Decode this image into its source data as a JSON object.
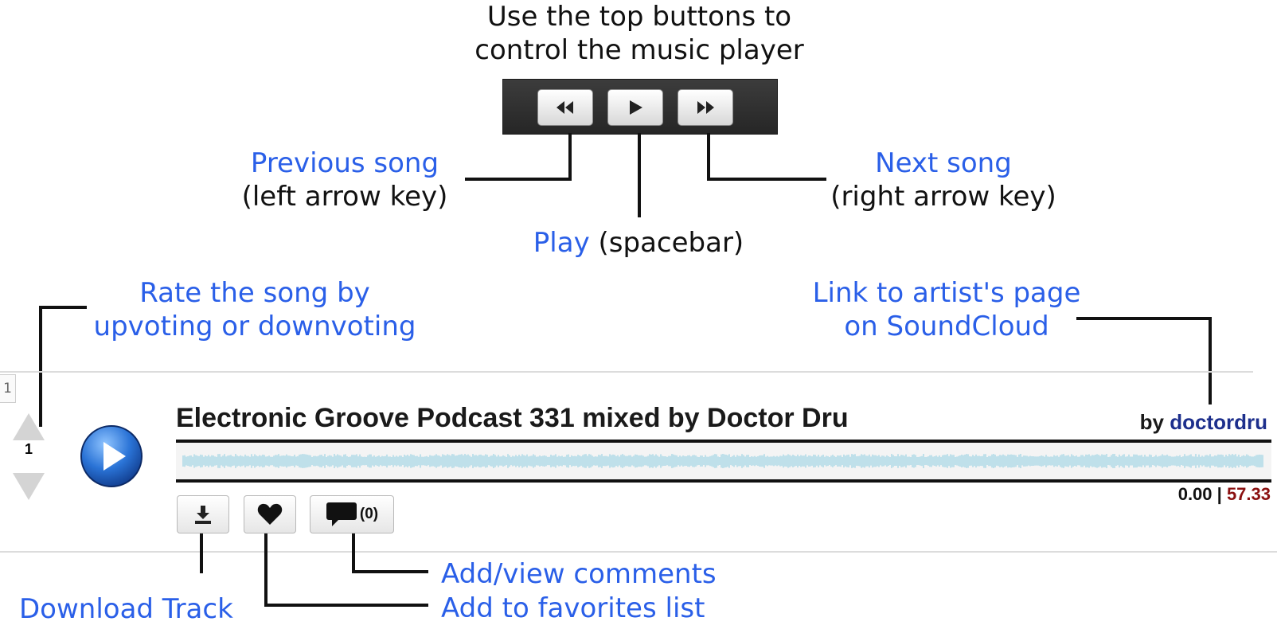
{
  "header": {
    "line1": "Use the top buttons to",
    "line2": "control the music player"
  },
  "player": {
    "buttons": [
      {
        "icon": "rewind-icon"
      },
      {
        "icon": "play-icon"
      },
      {
        "icon": "fast-forward-icon"
      }
    ]
  },
  "annotations": {
    "previous": {
      "title": "Previous song",
      "hint": "(left arrow key)"
    },
    "play": {
      "title": "Play",
      "hint": "(spacebar)"
    },
    "next": {
      "title": "Next song",
      "hint": "(right arrow key)"
    },
    "rate": {
      "line1": "Rate the song by",
      "line2": "upvoting or downvoting"
    },
    "artist": {
      "line1": "Link to artist's page",
      "line2": "on SoundCloud"
    },
    "download": "Download Track",
    "comments": "Add/view comments",
    "favorites": "Add to favorites list"
  },
  "track": {
    "rank": "1",
    "votes": "1",
    "title": "Electronic Groove Podcast 331 mixed by Doctor Dru",
    "by_label": "by",
    "artist": "doctordru",
    "time_current": "0.00",
    "time_separator": "|",
    "time_total": "57.33",
    "comment_count": "(0)"
  },
  "colors": {
    "annotation_blue": "#2a5fe8",
    "artist_link": "#1d2f8c",
    "total_time": "#8a1010",
    "waveform": "#bfe0ea"
  }
}
